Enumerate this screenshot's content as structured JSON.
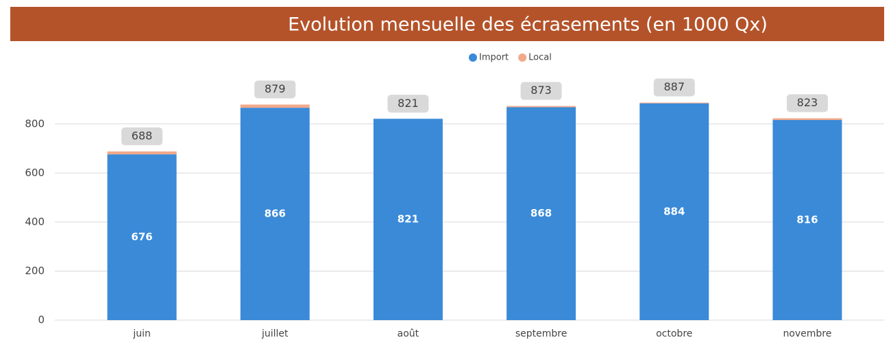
{
  "chart_data": {
    "type": "stacked_bar",
    "title": "Evolution mensuelle des écrasements (en 1000 Qx)",
    "categories": [
      "juin",
      "juillet",
      "août",
      "septembre",
      "octobre",
      "novembre"
    ],
    "series": [
      {
        "name": "Import",
        "color": "#3a8ad8",
        "values": [
          676,
          866,
          821,
          868,
          884,
          816
        ]
      },
      {
        "name": "Local",
        "color": "#f2a98a",
        "values": [
          12,
          13,
          0,
          5,
          3,
          7
        ]
      }
    ],
    "totals": [
      688,
      879,
      821,
      873,
      887,
      823
    ],
    "ylim": [
      0,
      900
    ],
    "yticks": [
      0,
      200,
      400,
      600,
      800
    ],
    "grid": true,
    "legend": "top"
  }
}
